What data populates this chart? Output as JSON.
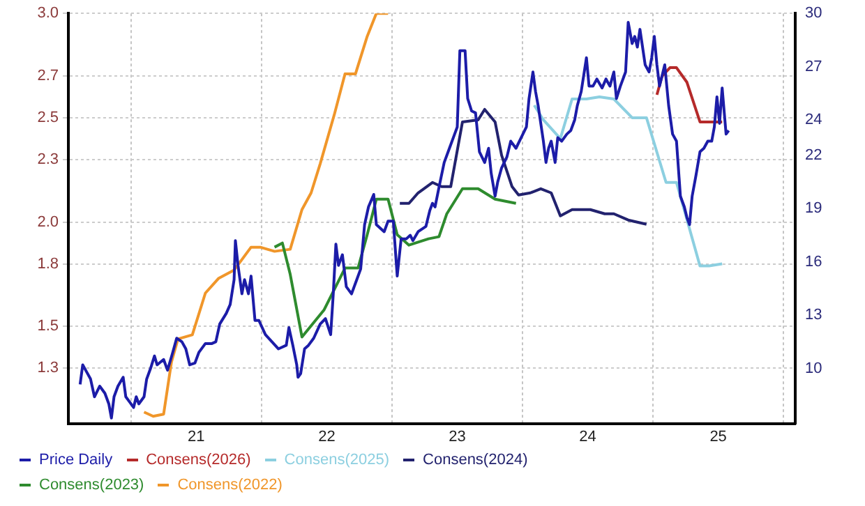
{
  "chart_data": {
    "type": "line",
    "legend": "bottom left",
    "grid": true,
    "marker": "none",
    "line_style": "solid",
    "xlim": [
      20.02,
      25.59
    ],
    "xticks": [
      {
        "value": 20.5,
        "label": null
      },
      21,
      {
        "value": 21.5,
        "label": null
      },
      22,
      {
        "value": 22.5,
        "label": null
      },
      23,
      {
        "value": 23.5,
        "label": null
      },
      24,
      {
        "value": 24.5,
        "label": null
      },
      25,
      {
        "value": 25.5,
        "label": null
      }
    ],
    "ylim": [
      1.034,
      3.0
    ],
    "yticks": [
      1.3,
      1.5,
      1.8,
      {
        "value": 2.0,
        "label": "2.0"
      },
      2.3,
      2.5,
      2.7,
      {
        "value": 3.0,
        "label": "3.0"
      }
    ],
    "y2lim": [
      6.88,
      30
    ],
    "y2ticks": [
      10,
      13,
      16,
      19,
      22,
      24,
      27,
      30
    ],
    "series": [
      {
        "name": "Price Daily",
        "color": "#1c1ca8",
        "axis": "y2",
        "x": [
          20.11,
          20.13,
          20.16,
          20.19,
          20.22,
          20.26,
          20.3,
          20.33,
          20.35,
          20.37,
          20.4,
          20.44,
          20.46,
          20.49,
          20.52,
          20.54,
          20.56,
          20.6,
          20.62,
          20.65,
          20.68,
          20.7,
          20.75,
          20.78,
          20.82,
          20.85,
          20.89,
          20.92,
          20.95,
          20.99,
          21.02,
          21.07,
          21.12,
          21.15,
          21.18,
          21.23,
          21.26,
          21.29,
          21.3,
          21.32,
          21.35,
          21.37,
          21.4,
          21.42,
          21.45,
          21.48,
          21.53,
          21.58,
          21.63,
          21.69,
          21.71,
          21.74,
          21.77,
          21.78,
          21.8,
          21.83,
          21.86,
          21.9,
          21.95,
          21.99,
          22.03,
          22.05,
          22.07,
          22.09,
          22.12,
          22.15,
          22.19,
          22.23,
          22.26,
          22.29,
          22.32,
          22.36,
          22.38,
          22.44,
          22.47,
          22.51,
          22.54,
          22.57,
          22.61,
          22.64,
          22.66,
          22.7,
          22.76,
          22.79,
          22.81,
          22.83,
          22.86,
          22.9,
          22.94,
          22.98,
          23.0,
          23.02,
          23.06,
          23.08,
          23.11,
          23.14,
          23.17,
          23.21,
          23.24,
          23.26,
          23.29,
          23.31,
          23.34,
          23.38,
          23.41,
          23.45,
          23.49,
          23.53,
          23.55,
          23.58,
          23.6,
          23.62,
          23.66,
          23.68,
          23.7,
          23.72,
          23.75,
          23.77,
          23.8,
          23.84,
          23.87,
          23.9,
          23.92,
          23.95,
          23.99,
          24.01,
          24.04,
          24.07,
          24.11,
          24.14,
          24.17,
          24.2,
          24.22,
          24.25,
          24.29,
          24.31,
          24.34,
          24.36,
          24.38,
          24.4,
          24.44,
          24.47,
          24.49,
          24.51,
          24.53,
          24.55,
          24.59,
          24.62,
          24.65,
          24.68,
          24.71,
          24.74,
          24.76,
          24.78,
          24.8,
          24.83,
          24.86,
          24.89,
          24.92,
          24.95,
          24.97,
          24.99,
          25.01,
          25.03,
          25.06,
          25.08
        ],
        "values": [
          9.1,
          10.2,
          9.8,
          9.4,
          8.4,
          9.0,
          8.6,
          8.0,
          7.2,
          8.4,
          9.0,
          9.5,
          8.4,
          8.1,
          7.8,
          8.4,
          8.0,
          8.4,
          9.4,
          10.0,
          10.7,
          10.2,
          10.5,
          9.9,
          10.9,
          11.7,
          11.5,
          11.1,
          10.2,
          10.3,
          10.9,
          11.4,
          11.4,
          11.5,
          12.5,
          13.1,
          13.6,
          15.0,
          17.2,
          15.8,
          14.2,
          15.0,
          14.2,
          15.2,
          12.7,
          12.7,
          11.9,
          11.5,
          11.1,
          11.3,
          12.3,
          11.3,
          10.2,
          9.5,
          9.7,
          11.1,
          11.3,
          11.7,
          12.5,
          12.8,
          11.9,
          14.2,
          17.0,
          15.8,
          16.4,
          14.6,
          14.2,
          15.0,
          15.6,
          18.1,
          19.1,
          19.8,
          18.1,
          17.7,
          18.3,
          18.3,
          15.2,
          17.3,
          17.3,
          17.5,
          17.2,
          17.7,
          18.0,
          18.9,
          19.3,
          19.1,
          20.2,
          21.6,
          22.4,
          23.2,
          23.6,
          27.9,
          27.9,
          25.2,
          24.5,
          24.4,
          22.2,
          21.6,
          22.4,
          21.0,
          19.7,
          20.5,
          21.3,
          21.9,
          22.8,
          22.4,
          23.0,
          23.6,
          25.2,
          26.7,
          25.6,
          24.8,
          22.8,
          21.6,
          22.4,
          22.8,
          21.6,
          23.0,
          22.8,
          23.2,
          23.4,
          24.0,
          24.8,
          25.6,
          27.5,
          25.9,
          25.9,
          26.3,
          25.8,
          26.3,
          25.9,
          26.7,
          25.2,
          25.9,
          26.7,
          29.5,
          28.3,
          28.7,
          28.1,
          29.1,
          27.1,
          26.7,
          27.5,
          28.7,
          27.1,
          25.9,
          27.1,
          24.8,
          23.2,
          22.8,
          19.7,
          19.1,
          18.5,
          18.1,
          19.7,
          20.9,
          22.2,
          22.4,
          22.8,
          22.8,
          23.6,
          25.3,
          23.8,
          25.8,
          23.2,
          23.4
        ]
      },
      {
        "name": "Consens(2026)",
        "color": "#b52a2a",
        "x": [
          24.53,
          24.57,
          24.63,
          24.68,
          24.76,
          24.86,
          24.95,
          25.03
        ],
        "values": [
          2.61,
          2.7,
          2.74,
          2.74,
          2.67,
          2.48,
          2.48,
          2.48
        ]
      },
      {
        "name": "Consens(2025)",
        "color": "#8ccfe0",
        "x": [
          23.59,
          23.66,
          23.79,
          23.88,
          23.99,
          24.09,
          24.2,
          24.34,
          24.45,
          24.6,
          24.68,
          24.86,
          24.93,
          25.03
        ],
        "values": [
          2.56,
          2.49,
          2.4,
          2.59,
          2.59,
          2.6,
          2.59,
          2.5,
          2.5,
          2.19,
          2.19,
          1.79,
          1.79,
          1.8
        ]
      },
      {
        "name": "Consens(2024)",
        "color": "#22226e",
        "x": [
          22.56,
          22.63,
          22.7,
          22.81,
          22.88,
          22.95,
          23.04,
          23.16,
          23.21,
          23.29,
          23.34,
          23.42,
          23.47,
          23.56,
          23.64,
          23.72,
          23.79,
          23.88,
          24.02,
          24.13,
          24.2,
          24.31,
          24.45
        ],
        "values": [
          2.09,
          2.09,
          2.14,
          2.19,
          2.17,
          2.17,
          2.48,
          2.49,
          2.54,
          2.48,
          2.32,
          2.17,
          2.13,
          2.14,
          2.16,
          2.14,
          2.03,
          2.06,
          2.06,
          2.04,
          2.04,
          2.01,
          1.99
        ]
      },
      {
        "name": "Consens(2023)",
        "color": "#2e8b2e",
        "x": [
          21.6,
          21.66,
          21.72,
          21.81,
          21.98,
          22.14,
          22.24,
          22.31,
          22.38,
          22.47,
          22.54,
          22.63,
          22.78,
          22.86,
          22.92,
          23.04,
          23.16,
          23.29,
          23.45
        ],
        "values": [
          1.88,
          1.9,
          1.75,
          1.45,
          1.58,
          1.78,
          1.78,
          1.94,
          2.11,
          2.11,
          1.94,
          1.89,
          1.92,
          1.93,
          2.04,
          2.16,
          2.16,
          2.11,
          2.09
        ]
      },
      {
        "name": "Consens(2022)",
        "color": "#f0962a",
        "x": [
          20.6,
          20.67,
          20.75,
          20.81,
          20.86,
          20.97,
          21.07,
          21.17,
          21.29,
          21.42,
          21.49,
          21.6,
          21.72,
          21.81,
          21.88,
          21.95,
          22.06,
          22.14,
          22.22,
          22.31,
          22.38,
          22.47
        ],
        "values": [
          1.09,
          1.07,
          1.08,
          1.33,
          1.44,
          1.46,
          1.66,
          1.73,
          1.77,
          1.88,
          1.88,
          1.86,
          1.87,
          2.06,
          2.14,
          2.28,
          2.52,
          2.71,
          2.71,
          2.89,
          3.0,
          3.0
        ]
      }
    ]
  }
}
